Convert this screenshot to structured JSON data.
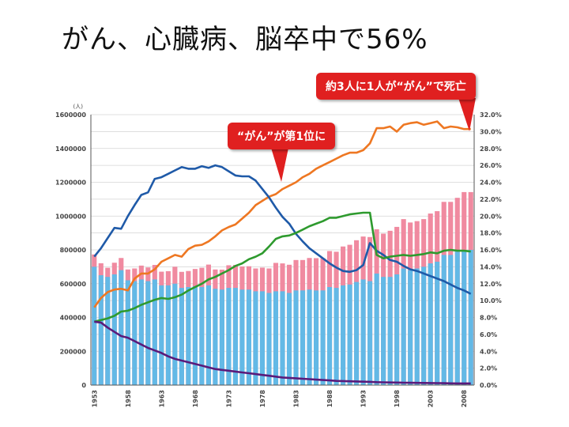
{
  "title": "がん、心臓病、脳卒中で56%",
  "annotations": [
    {
      "text": "“がん”が第1位に"
    },
    {
      "text": "約3人に1人が“がん”で死亡"
    }
  ],
  "colors": {
    "total_deaths_bar": "#f08aa0",
    "cancer_share": "#ee7722",
    "stroke_share": "#1f5aa8",
    "heart_share": "#2e9a2e",
    "tuberculosis_share": "#5a1a7a",
    "base_bar": "#63b9e6",
    "callout": "#e02020"
  },
  "chart_data": {
    "type": "bar",
    "y_unit_label": "(人)",
    "x": [
      1953,
      1954,
      1955,
      1956,
      1957,
      1958,
      1959,
      1960,
      1961,
      1962,
      1963,
      1964,
      1965,
      1966,
      1967,
      1968,
      1969,
      1970,
      1971,
      1972,
      1973,
      1974,
      1975,
      1976,
      1977,
      1978,
      1979,
      1980,
      1981,
      1982,
      1983,
      1984,
      1985,
      1986,
      1987,
      1988,
      1989,
      1990,
      1991,
      1992,
      1993,
      1994,
      1995,
      1996,
      1997,
      1998,
      1999,
      2000,
      2001,
      2002,
      2003,
      2004,
      2005,
      2006,
      2007,
      2008,
      2009
    ],
    "x_tick_labels": [
      "1953",
      "1958",
      "1963",
      "1968",
      "1973",
      "1978",
      "1983",
      "1988",
      "1993",
      "1998",
      "2003",
      "2008"
    ],
    "y_left": {
      "min": 0,
      "max": 1600000,
      "ticks": [
        "0",
        "200000",
        "400000",
        "600000",
        "800000",
        "1000000",
        "1200000",
        "1400000",
        "1600000"
      ]
    },
    "y_right": {
      "min": 0,
      "max": 32,
      "ticks": [
        "0.0%",
        "2.0%",
        "4.0%",
        "6.0%",
        "8.0%",
        "10.0%",
        "12.0%",
        "14.0%",
        "16.0%",
        "18.0%",
        "20.0%",
        "22.0%",
        "24.0%",
        "26.0%",
        "28.0%",
        "30.0%",
        "32.0%"
      ]
    },
    "grid": true,
    "bar_series": [
      {
        "axis": "left",
        "color_key": "total_deaths_bar",
        "values": [
          773000,
          721000,
          694000,
          724000,
          752000,
          684000,
          690000,
          707000,
          696000,
          711000,
          671000,
          674000,
          700000,
          670000,
          675000,
          687000,
          694000,
          713000,
          684000,
          683000,
          709000,
          711000,
          702000,
          703000,
          690000,
          695000,
          690000,
          723000,
          720000,
          712000,
          740000,
          740000,
          752000,
          751000,
          751000,
          793000,
          789000,
          820000,
          830000,
          857000,
          879000,
          876000,
          922000,
          896000,
          913000,
          936000,
          982000,
          962000,
          970000,
          982000,
          1015000,
          1029000,
          1084000,
          1084000,
          1108000,
          1142000,
          1142000
        ]
      },
      {
        "axis": "left",
        "color_key": "base_bar",
        "values": [
          700000,
          650000,
          640000,
          655000,
          680000,
          620000,
          615000,
          625000,
          615000,
          625000,
          590000,
          590000,
          600000,
          575000,
          580000,
          585000,
          580000,
          590000,
          570000,
          565000,
          575000,
          575000,
          565000,
          565000,
          555000,
          555000,
          545000,
          555000,
          555000,
          545000,
          560000,
          560000,
          565000,
          560000,
          560000,
          580000,
          575000,
          590000,
          595000,
          610000,
          625000,
          615000,
          660000,
          640000,
          640000,
          655000,
          690000,
          680000,
          690000,
          700000,
          720000,
          730000,
          770000,
          770000,
          790000,
          800000,
          800000
        ]
      }
    ],
    "series": [
      {
        "axis": "right",
        "color_key": "cancer_share",
        "values": [
          9.2,
          10.3,
          11.0,
          11.3,
          11.4,
          11.2,
          12.6,
          13.2,
          13.2,
          13.7,
          14.6,
          15.0,
          15.4,
          15.2,
          16.1,
          16.5,
          16.6,
          17.0,
          17.6,
          18.3,
          18.7,
          19.0,
          19.7,
          20.4,
          21.3,
          21.8,
          22.3,
          22.6,
          23.2,
          23.6,
          24.0,
          24.6,
          25.0,
          25.6,
          26.0,
          26.4,
          26.8,
          27.2,
          27.5,
          27.5,
          27.8,
          28.6,
          30.4,
          30.4,
          30.6,
          30.0,
          30.8,
          31.0,
          31.1,
          30.8,
          31.0,
          31.2,
          30.4,
          30.6,
          30.5,
          30.3,
          30.3
        ]
      },
      {
        "axis": "right",
        "color_key": "stroke_share",
        "values": [
          15.2,
          16.2,
          17.4,
          18.6,
          18.5,
          20.0,
          21.3,
          22.5,
          22.8,
          24.4,
          24.6,
          25.0,
          25.4,
          25.8,
          25.6,
          25.6,
          25.9,
          25.7,
          26.0,
          25.8,
          25.3,
          24.8,
          24.7,
          24.7,
          24.2,
          23.2,
          22.2,
          21.0,
          19.9,
          19.1,
          17.9,
          17.0,
          16.2,
          15.6,
          15.0,
          14.4,
          13.9,
          13.5,
          13.4,
          13.6,
          14.2,
          16.8,
          15.9,
          15.4,
          14.8,
          14.6,
          14.1,
          13.7,
          13.5,
          13.2,
          12.9,
          12.6,
          12.3,
          11.9,
          11.5,
          11.2,
          10.8
        ]
      },
      {
        "axis": "right",
        "color_key": "heart_share",
        "values": [
          7.5,
          7.7,
          7.9,
          8.2,
          8.7,
          8.8,
          9.1,
          9.5,
          9.8,
          10.1,
          10.3,
          10.2,
          10.4,
          10.7,
          11.2,
          11.6,
          12.0,
          12.5,
          12.8,
          13.2,
          13.6,
          14.1,
          14.4,
          14.9,
          15.2,
          15.6,
          16.4,
          17.3,
          17.6,
          17.7,
          18.0,
          18.4,
          18.8,
          19.1,
          19.4,
          19.8,
          19.8,
          20.0,
          20.2,
          20.3,
          20.4,
          20.4,
          15.4,
          15.0,
          15.2,
          15.3,
          15.4,
          15.3,
          15.4,
          15.5,
          15.7,
          15.6,
          15.9,
          16.0,
          15.9,
          15.9,
          15.8
        ]
      },
      {
        "axis": "right",
        "color_key": "tuberculosis_share",
        "values": [
          7.5,
          7.4,
          6.8,
          6.3,
          5.8,
          5.6,
          5.2,
          4.8,
          4.4,
          4.1,
          3.8,
          3.4,
          3.1,
          2.9,
          2.7,
          2.5,
          2.3,
          2.1,
          1.9,
          1.8,
          1.7,
          1.6,
          1.5,
          1.4,
          1.3,
          1.2,
          1.1,
          1.0,
          0.9,
          0.85,
          0.8,
          0.75,
          0.7,
          0.65,
          0.6,
          0.55,
          0.5,
          0.48,
          0.45,
          0.43,
          0.4,
          0.38,
          0.35,
          0.33,
          0.31,
          0.3,
          0.28,
          0.27,
          0.26,
          0.25,
          0.24,
          0.23,
          0.22,
          0.21,
          0.2,
          0.2,
          0.2
        ]
      }
    ]
  }
}
